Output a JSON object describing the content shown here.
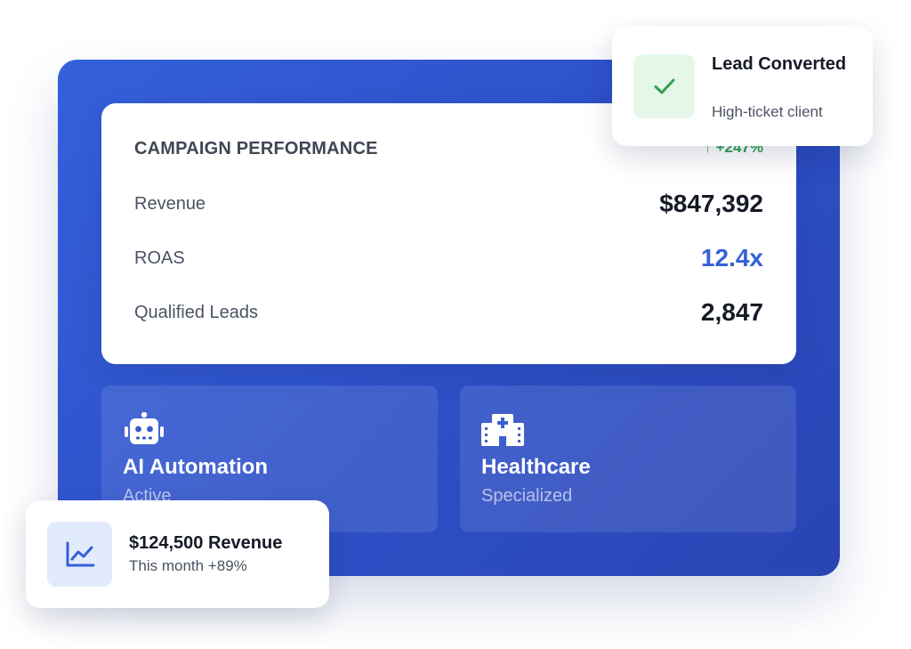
{
  "campaign": {
    "title": "CAMPAIGN PERFORMANCE",
    "growth": "↑ +247%",
    "metrics": [
      {
        "label": "Revenue",
        "value": "$847,392"
      },
      {
        "label": "ROAS",
        "value": "12.4x"
      },
      {
        "label": "Qualified Leads",
        "value": "2,847"
      }
    ]
  },
  "tiles": [
    {
      "icon": "robot-icon",
      "title": "AI Automation",
      "subtitle": "Active"
    },
    {
      "icon": "hospital-icon",
      "title": "Healthcare",
      "subtitle": "Specialized"
    }
  ],
  "notification": {
    "icon": "check-icon",
    "title": "Lead Converted",
    "subtitle": "High-ticket client"
  },
  "revenue_badge": {
    "icon": "trend-chart-icon",
    "title": "$124,500 Revenue",
    "subtitle": "This month +89%"
  },
  "colors": {
    "panel_blue": "#2d4fc6",
    "accent_blue": "#3461d8",
    "success_green": "#2fa150",
    "success_bg": "#e4f7e9",
    "info_bg": "#e2ebfc"
  }
}
